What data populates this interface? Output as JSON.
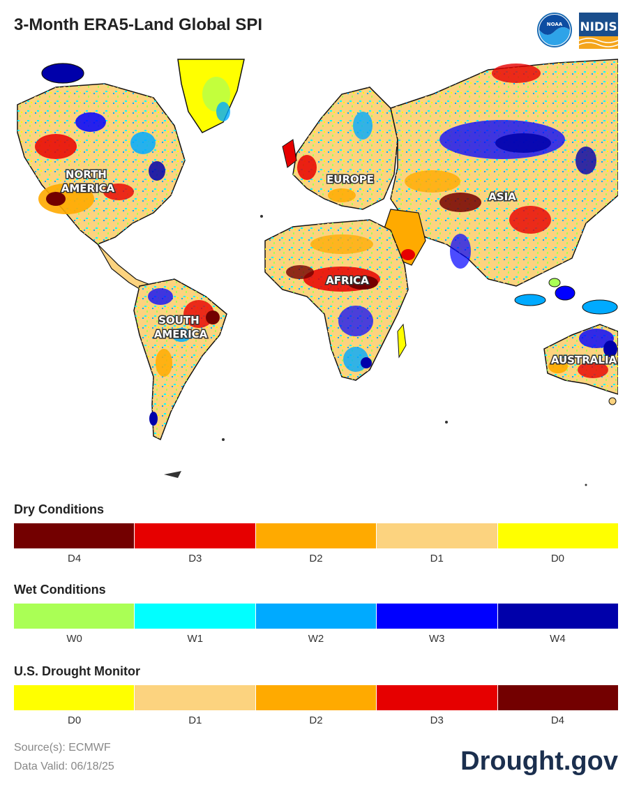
{
  "title": "3-Month ERA5-Land Global SPI",
  "logos": {
    "noaa": "NOAA",
    "nidis": "NIDIS"
  },
  "map": {
    "regions": [
      {
        "id": "north-america",
        "lines": [
          "NORTH",
          "AMERICA"
        ]
      },
      {
        "id": "europe",
        "lines": [
          "EUROPE"
        ]
      },
      {
        "id": "asia",
        "lines": [
          "ASIA"
        ]
      },
      {
        "id": "africa",
        "lines": [
          "AFRICA"
        ]
      },
      {
        "id": "south-america",
        "lines": [
          "SOUTH",
          "AMERICA"
        ]
      },
      {
        "id": "australia",
        "lines": [
          "AUSTRALIA"
        ]
      }
    ]
  },
  "legend": {
    "dry": {
      "title": "Dry Conditions",
      "items": [
        {
          "label": "D4",
          "color": "#730000"
        },
        {
          "label": "D3",
          "color": "#e60000"
        },
        {
          "label": "D2",
          "color": "#ffaa00"
        },
        {
          "label": "D1",
          "color": "#fcd37f"
        },
        {
          "label": "D0",
          "color": "#ffff00"
        }
      ]
    },
    "wet": {
      "title": "Wet Conditions",
      "items": [
        {
          "label": "W0",
          "color": "#aaff55"
        },
        {
          "label": "W1",
          "color": "#01ffff"
        },
        {
          "label": "W2",
          "color": "#00aaff"
        },
        {
          "label": "W3",
          "color": "#0000ff"
        },
        {
          "label": "W4",
          "color": "#0000aa"
        }
      ]
    },
    "usdm": {
      "title": "U.S. Drought Monitor",
      "items": [
        {
          "label": "D0",
          "color": "#ffff00"
        },
        {
          "label": "D1",
          "color": "#fcd37f"
        },
        {
          "label": "D2",
          "color": "#ffaa00"
        },
        {
          "label": "D3",
          "color": "#e60000"
        },
        {
          "label": "D4",
          "color": "#730000"
        }
      ]
    }
  },
  "footer": {
    "source": "Source(s): ECMWF",
    "valid": "Data Valid: 06/18/25",
    "brand": "Drought.gov"
  }
}
